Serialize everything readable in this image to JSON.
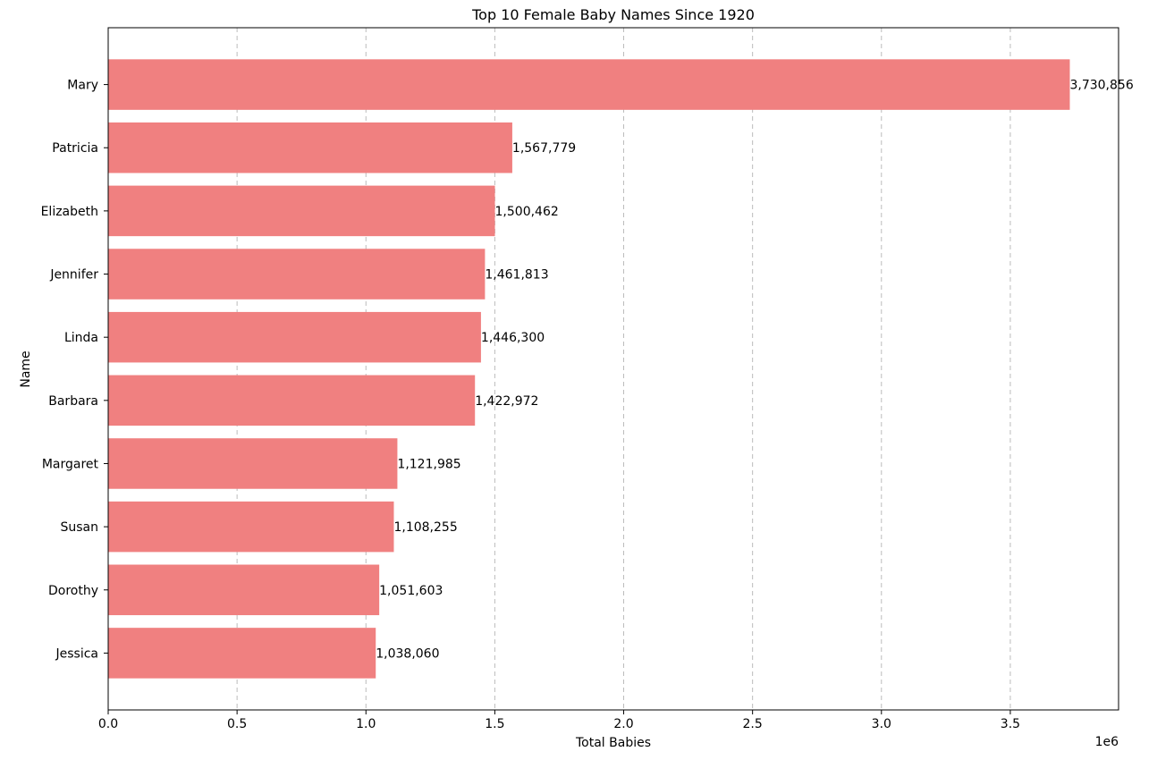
{
  "chart_data": {
    "type": "bar",
    "orientation": "horizontal",
    "title": "Top 10 Female Baby Names Since 1920",
    "xlabel": "Total Babies",
    "ylabel": "Name",
    "x_axis_offset_text": "1e6",
    "xlim": [
      0,
      3.92
    ],
    "x_scale_factor": 1000000,
    "x_ticks": [
      0.0,
      0.5,
      1.0,
      1.5,
      2.0,
      2.5,
      3.0,
      3.5
    ],
    "x_tick_labels": [
      "0.0",
      "0.5",
      "1.0",
      "1.5",
      "2.0",
      "2.5",
      "3.0",
      "3.5"
    ],
    "grid": {
      "x": true,
      "y": false,
      "style": "dashed"
    },
    "bar_color": "#f08080",
    "categories": [
      "Mary",
      "Patricia",
      "Elizabeth",
      "Jennifer",
      "Linda",
      "Barbara",
      "Margaret",
      "Susan",
      "Dorothy",
      "Jessica"
    ],
    "values": [
      3730856,
      1567779,
      1500462,
      1461813,
      1446300,
      1422972,
      1121985,
      1108255,
      1051603,
      1038060
    ],
    "value_labels": [
      "3,730,856",
      "1,567,779",
      "1,500,462",
      "1,461,813",
      "1,446,300",
      "1,422,972",
      "1,121,985",
      "1,108,255",
      "1,051,603",
      "1,038,060"
    ]
  }
}
